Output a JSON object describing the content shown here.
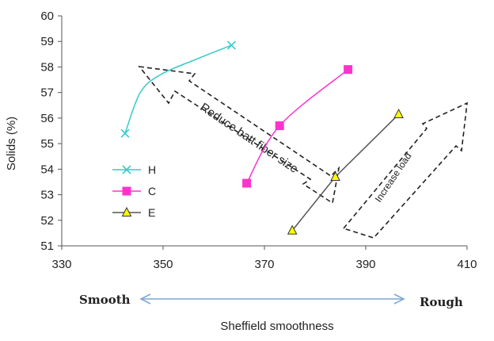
{
  "chart_data": {
    "type": "scatter",
    "title": "",
    "xlabel": "Sheffield smoothness",
    "ylabel": "Solids (%)",
    "xlim": [
      330,
      410
    ],
    "ylim": [
      51,
      60
    ],
    "xticks": [
      330,
      350,
      370,
      390,
      410
    ],
    "yticks": [
      51,
      52,
      53,
      54,
      55,
      56,
      57,
      58,
      59,
      60
    ],
    "grid": false,
    "legend_position": "left",
    "series": [
      {
        "name": "H",
        "color": "#33CCCC",
        "marker": "x",
        "smooth": true,
        "x": [
          342.5,
          345.5,
          349.5,
          356.5,
          363.5
        ],
        "y": [
          55.4,
          57.0,
          57.7,
          58.3,
          58.85
        ]
      },
      {
        "name": "C",
        "color": "#FF33CC",
        "marker": "square",
        "smooth": true,
        "x": [
          366.5,
          373,
          386.5
        ],
        "y": [
          53.45,
          55.7,
          57.9
        ]
      },
      {
        "name": "E",
        "color": "#FFFF00",
        "line_color": "#555555",
        "marker": "triangle",
        "smooth": false,
        "x": [
          375.5,
          384,
          396.5
        ],
        "y": [
          51.6,
          53.7,
          56.15
        ]
      }
    ],
    "annotations": {
      "reduce_fiber": "Reduce batt fiber size",
      "increase_load": "Increase load",
      "smooth_label": "Smooth",
      "rough_label": "Rough",
      "range_arrow_color": "#7FA7D0"
    }
  }
}
